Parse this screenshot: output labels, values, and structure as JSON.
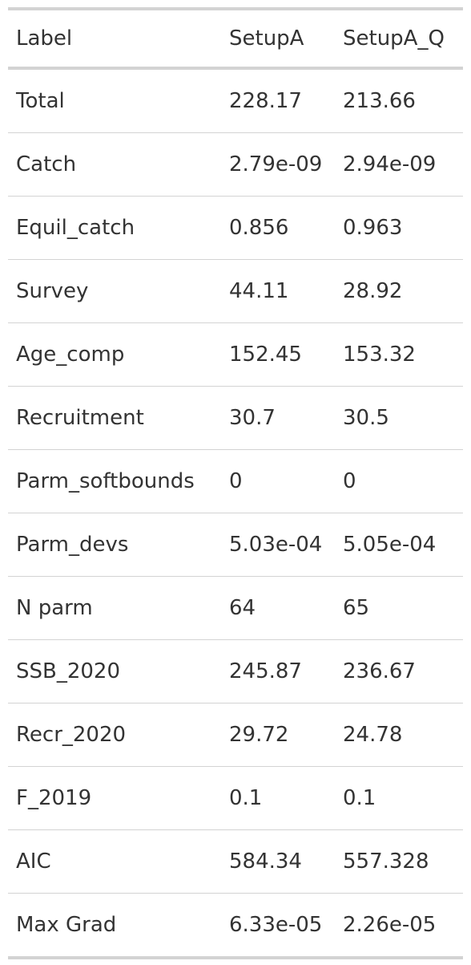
{
  "table": {
    "headers": [
      "Label",
      "SetupA",
      "SetupA_Q"
    ],
    "rows": [
      [
        "Total",
        "228.17",
        "213.66"
      ],
      [
        "Catch",
        "2.79e-09",
        "2.94e-09"
      ],
      [
        "Equil_catch",
        "0.856",
        "0.963"
      ],
      [
        "Survey",
        "44.11",
        "28.92"
      ],
      [
        "Age_comp",
        "152.45",
        "153.32"
      ],
      [
        "Recruitment",
        "30.7",
        "30.5"
      ],
      [
        "Parm_softbounds",
        "0",
        "0"
      ],
      [
        "Parm_devs",
        "5.03e-04",
        "5.05e-04"
      ],
      [
        "N parm",
        "64",
        "65"
      ],
      [
        "SSB_2020",
        "245.87",
        "236.67"
      ],
      [
        "Recr_2020",
        "29.72",
        "24.78"
      ],
      [
        "F_2019",
        "0.1",
        "0.1"
      ],
      [
        "AIC",
        "584.34",
        "557.328"
      ],
      [
        "Max Grad",
        "6.33e-05",
        "2.26e-05"
      ]
    ]
  }
}
